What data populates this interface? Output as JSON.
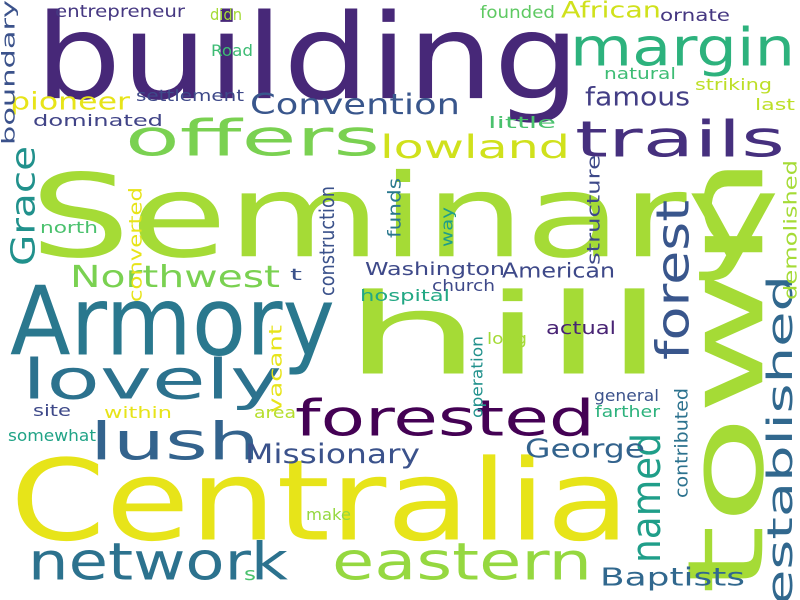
{
  "words": [
    {
      "text": "Seminary",
      "color": "#a5db36"
    },
    {
      "text": "building",
      "color": "#472878"
    },
    {
      "text": "hill",
      "color": "#a5db36"
    },
    {
      "text": "town",
      "color": "#a5db36"
    },
    {
      "text": "Centralia",
      "color": "#e7e419"
    },
    {
      "text": "Armory",
      "color": "#2a788e"
    },
    {
      "text": "margin",
      "color": "#2db27d"
    },
    {
      "text": "trails",
      "color": "#46307e"
    },
    {
      "text": "offers",
      "color": "#7ad151"
    },
    {
      "text": "lovely",
      "color": "#2c728e"
    },
    {
      "text": "forested",
      "color": "#440154"
    },
    {
      "text": "lush",
      "color": "#33638d"
    },
    {
      "text": "network",
      "color": "#2c728e"
    },
    {
      "text": "eastern",
      "color": "#95d840"
    },
    {
      "text": "established",
      "color": "#31688e"
    },
    {
      "text": "forest",
      "color": "#39568c"
    },
    {
      "text": "lowland",
      "color": "#d0e11c"
    },
    {
      "text": "Convention",
      "color": "#39568c"
    },
    {
      "text": "Northwest",
      "color": "#7ad151"
    },
    {
      "text": "named",
      "color": "#1f9e89"
    },
    {
      "text": "Grace",
      "color": "#21918c"
    },
    {
      "text": "Missionary",
      "color": "#3b528b"
    },
    {
      "text": "George",
      "color": "#33638d"
    },
    {
      "text": "Baptists",
      "color": "#31688e"
    },
    {
      "text": "famous",
      "color": "#433e85"
    },
    {
      "text": "pioneer",
      "color": "#e7e419"
    },
    {
      "text": "African",
      "color": "#d0e11c"
    },
    {
      "text": "Washington",
      "color": "#3e4989"
    },
    {
      "text": "American",
      "color": "#3e4989"
    },
    {
      "text": "entrepreneur",
      "color": "#453781"
    },
    {
      "text": "founded",
      "color": "#5ec962"
    },
    {
      "text": "ornate",
      "color": "#453781"
    },
    {
      "text": "didn",
      "color": "#a5db36"
    },
    {
      "text": "Road",
      "color": "#3dbc74"
    },
    {
      "text": "natural",
      "color": "#3dbc74"
    },
    {
      "text": "striking",
      "color": "#bddf26"
    },
    {
      "text": "last",
      "color": "#bddf26"
    },
    {
      "text": "settlement",
      "color": "#3e4989"
    },
    {
      "text": "dominated",
      "color": "#414487"
    },
    {
      "text": "church",
      "color": "#3e4989"
    },
    {
      "text": "little",
      "color": "#4ac16d"
    },
    {
      "text": "boundary",
      "color": "#3b528b"
    },
    {
      "text": "north",
      "color": "#4ac16d"
    },
    {
      "text": "converted",
      "color": "#e7e419"
    },
    {
      "text": "construction",
      "color": "#3b528b"
    },
    {
      "text": "funds",
      "color": "#2a788e"
    },
    {
      "text": "way",
      "color": "#1f9e89"
    },
    {
      "text": "structure",
      "color": "#3e4989"
    },
    {
      "text": "demolished",
      "color": "#a5db36"
    },
    {
      "text": "t",
      "color": "#3b528b"
    },
    {
      "text": "hospital",
      "color": "#22a884"
    },
    {
      "text": "long",
      "color": "#a5db36"
    },
    {
      "text": "operation",
      "color": "#21918c"
    },
    {
      "text": "actual",
      "color": "#482374"
    },
    {
      "text": "vacant",
      "color": "#e7e419"
    },
    {
      "text": "general",
      "color": "#3b528b"
    },
    {
      "text": "site",
      "color": "#3e4989"
    },
    {
      "text": "within",
      "color": "#e7e419"
    },
    {
      "text": "area",
      "color": "#b5de2b"
    },
    {
      "text": "farther",
      "color": "#2db27d"
    },
    {
      "text": "contributed",
      "color": "#2c728e"
    },
    {
      "text": "somewhat",
      "color": "#20a386"
    },
    {
      "text": "make",
      "color": "#95d840"
    },
    {
      "text": "s",
      "color": "#4ac16d"
    }
  ]
}
